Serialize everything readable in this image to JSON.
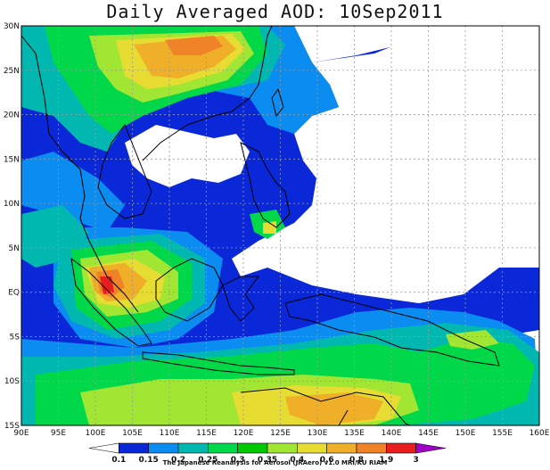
{
  "title": "Daily Averaged AOD: 10Sep2011",
  "credit": "The Japanese Reanalysis for Aerosol (JRAero) v1.0 MRI/KU RIAM",
  "map": {
    "lon_min": 90,
    "lon_max": 160,
    "lat_min": -15,
    "lat_max": 30,
    "lon_ticks": [
      "90E",
      "95E",
      "100E",
      "105E",
      "110E",
      "115E",
      "120E",
      "125E",
      "130E",
      "135E",
      "140E",
      "145E",
      "150E",
      "155E",
      "160E"
    ],
    "lat_ticks": [
      "15S",
      "10S",
      "5S",
      "EQ",
      "5N",
      "10N",
      "15N",
      "20N",
      "25N",
      "30N"
    ]
  },
  "colorbar": {
    "labels": [
      "0.1",
      "0.15",
      "0.2",
      "0.25",
      "0.3",
      "0.35",
      "0.4",
      "0.6",
      "0.8",
      "1.9",
      "3"
    ],
    "colors": [
      "#ffffff",
      "#0a28d8",
      "#0a8cf0",
      "#00b8b0",
      "#00d84a",
      "#00c800",
      "#a0e632",
      "#e6dc32",
      "#f0af28",
      "#f08228",
      "#e61e1e",
      "#a000c8"
    ]
  },
  "colors": {
    "land_outline": "#000000",
    "grid": "#9a9a9a",
    "background": "#ffffff"
  }
}
